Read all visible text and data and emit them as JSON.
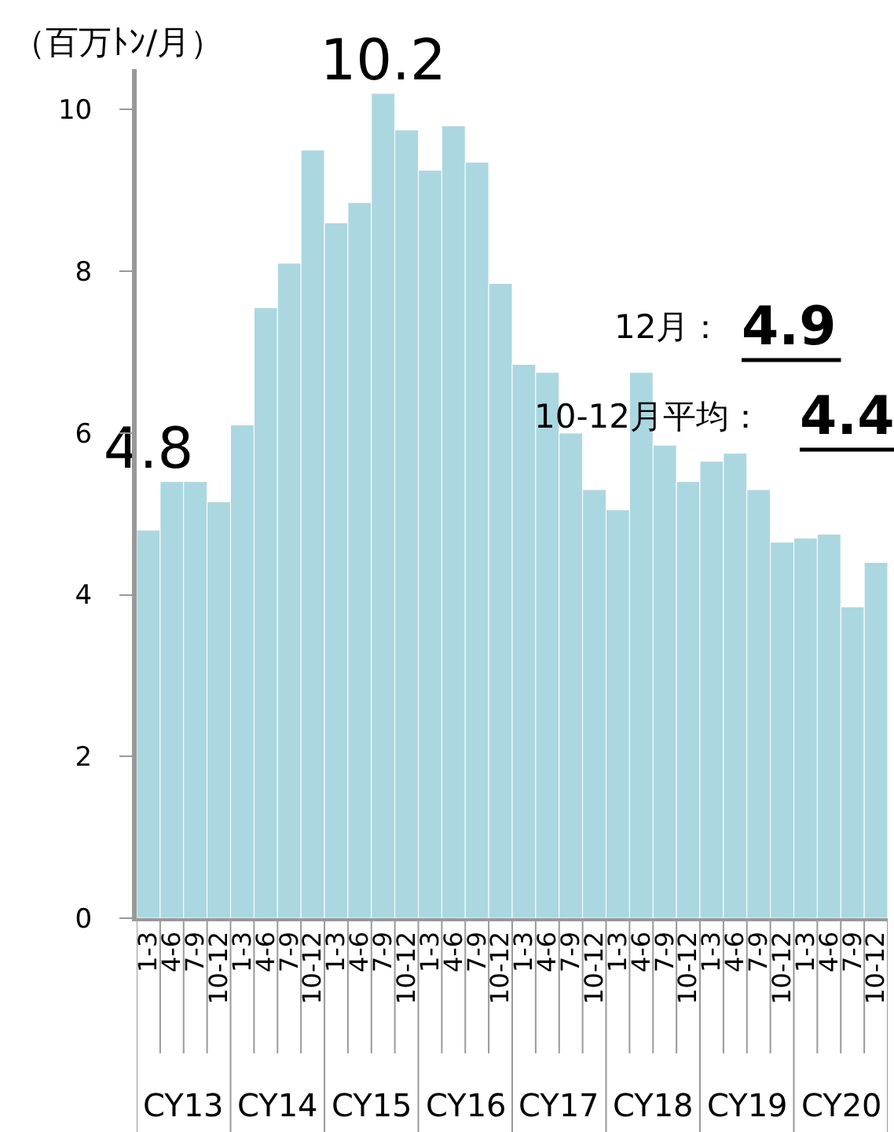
{
  "chart_data": {
    "type": "bar",
    "ylabel": "（百万ﾄﾝ/月）",
    "categories": [
      "1-3",
      "4-6",
      "7-9",
      "10-12",
      "1-3",
      "4-6",
      "7-9",
      "10-12",
      "1-3",
      "4-6",
      "7-9",
      "10-12",
      "1-3",
      "4-6",
      "7-9",
      "10-12",
      "1-3",
      "4-6",
      "7-9",
      "10-12",
      "1-3",
      "4-6",
      "7-9",
      "10-12",
      "1-3",
      "4-6",
      "7-9",
      "10-12",
      "1-3",
      "4-6",
      "7-9",
      "10-12"
    ],
    "values": [
      4.8,
      5.4,
      5.4,
      5.15,
      6.1,
      7.55,
      8.1,
      9.5,
      8.6,
      8.85,
      10.2,
      9.75,
      9.25,
      9.8,
      9.35,
      7.85,
      6.85,
      6.75,
      6.0,
      5.3,
      5.05,
      6.75,
      5.85,
      5.4,
      5.65,
      5.75,
      5.3,
      4.65,
      4.7,
      4.75,
      3.85,
      4.4
    ],
    "value_labels": [
      "4.8",
      null,
      null,
      null,
      null,
      null,
      null,
      null,
      null,
      null,
      "10.2",
      null,
      null,
      null,
      null,
      null,
      null,
      null,
      null,
      null,
      null,
      null,
      null,
      null,
      null,
      null,
      null,
      null,
      null,
      null,
      null,
      null
    ],
    "color": "#abd7e1",
    "ylim": [
      0,
      10.5
    ],
    "yticks": [
      0,
      2,
      4,
      6,
      8,
      10
    ],
    "grid": false,
    "annotations": [
      "CY13",
      "CY14",
      "CY15",
      "CY16",
      "CY17",
      "CY18",
      "CY19",
      "CY20",
      "12月：",
      "4.9",
      "10-12月平均：",
      "4.4"
    ]
  }
}
